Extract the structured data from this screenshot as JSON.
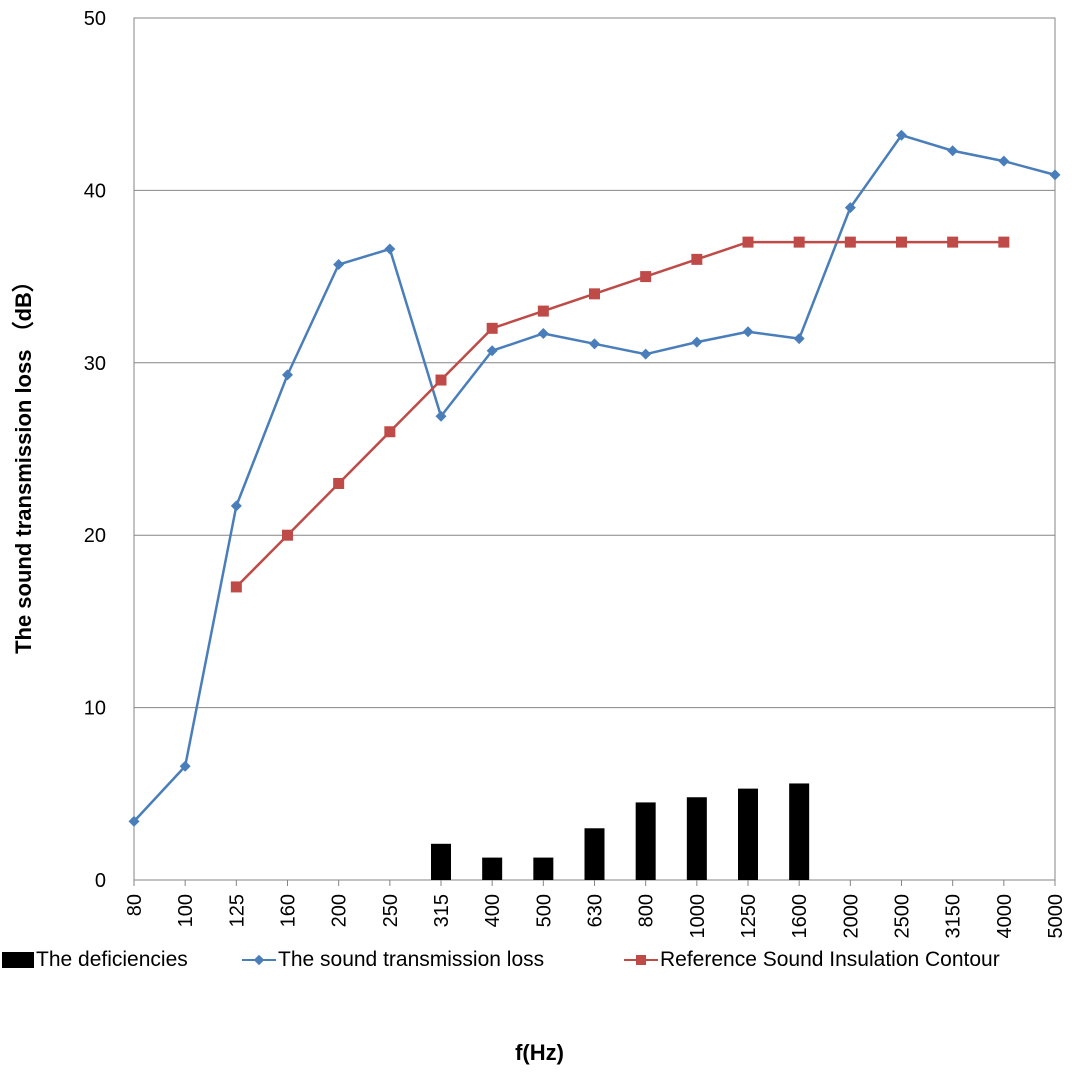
{
  "chart_data": {
    "type": "bar",
    "xlabel": "f(Hz)",
    "ylabel": "The sound transmission loss （dB）",
    "ylim": [
      0,
      50
    ],
    "yticks": [
      0,
      10,
      20,
      30,
      40,
      50
    ],
    "grid": true,
    "legend_position": "bottom",
    "categories": [
      "80",
      "100",
      "125",
      "160",
      "200",
      "250",
      "315",
      "400",
      "500",
      "630",
      "800",
      "1000",
      "1250",
      "1600",
      "2000",
      "2500",
      "3150",
      "4000",
      "5000"
    ],
    "series": [
      {
        "name": "The deficiencies",
        "type": "bar",
        "color": "#000000",
        "values": [
          null,
          null,
          null,
          null,
          null,
          null,
          2.1,
          1.3,
          1.3,
          3.0,
          4.5,
          4.8,
          5.3,
          5.6,
          null,
          null,
          null,
          null,
          null
        ]
      },
      {
        "name": "The sound transmission loss",
        "type": "line",
        "marker": "diamond",
        "color": "#4a7ebb",
        "values": [
          3.4,
          6.6,
          21.7,
          29.3,
          35.7,
          36.6,
          26.9,
          30.7,
          31.7,
          31.1,
          30.5,
          31.2,
          31.8,
          31.4,
          39.0,
          43.2,
          42.3,
          41.7,
          40.9
        ]
      },
      {
        "name": "Reference Sound Insulation Contour",
        "type": "line",
        "marker": "square",
        "color": "#be4b48",
        "values": [
          null,
          null,
          17,
          20,
          23,
          26,
          29,
          32,
          33,
          34,
          35,
          36,
          37,
          37,
          37,
          37,
          37,
          37,
          null
        ]
      }
    ]
  }
}
